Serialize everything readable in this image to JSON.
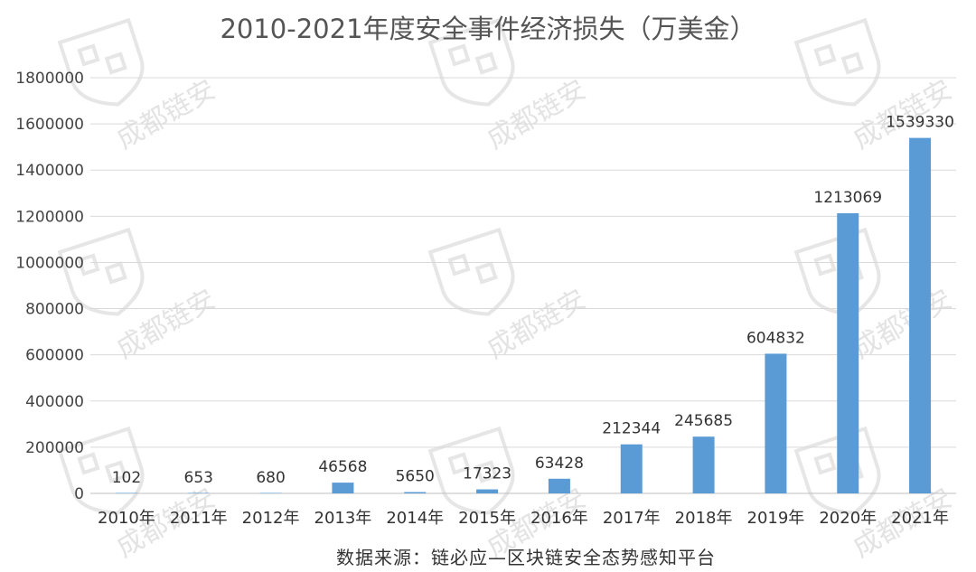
{
  "chart_data": {
    "type": "bar",
    "title": "2010-2021年度安全事件经济损失（万美金）",
    "categories": [
      "2010年",
      "2011年",
      "2012年",
      "2013年",
      "2014年",
      "2015年",
      "2016年",
      "2017年",
      "2018年",
      "2019年",
      "2020年",
      "2021年"
    ],
    "values": [
      102,
      653,
      680,
      46568,
      5650,
      17323,
      63428,
      212344,
      245685,
      604832,
      1213069,
      1539330
    ],
    "data_labels": [
      "102",
      "653",
      "680",
      "46568",
      "5650",
      "17323",
      "63428",
      "212344",
      "245685",
      "604832",
      "1213069",
      "1539330"
    ],
    "ylim": [
      0,
      1800000
    ],
    "yticks": [
      "0",
      "200000",
      "400000",
      "600000",
      "800000",
      "1000000",
      "1200000",
      "1400000",
      "1600000",
      "1800000"
    ],
    "grid": true,
    "bar_color": "#5b9bd5",
    "source_note": "数据来源：链必应—区块链安全态势感知平台"
  },
  "watermark": {
    "text": "成都链安"
  }
}
